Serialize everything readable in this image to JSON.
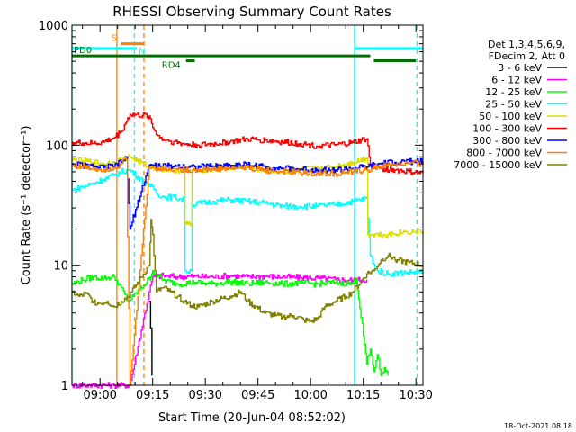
{
  "chart_data": {
    "type": "line",
    "title": "RHESSI Observing Summary Count Rates",
    "xlabel": "Start Time (20-Jun-04 08:52:02)",
    "ylabel": "Count Rate (s⁻¹ detector⁻¹)",
    "x_unit": "minutes after 08:52:02",
    "xlim": [
      0,
      100
    ],
    "ylim": [
      1,
      1000
    ],
    "yscale": "log",
    "x_ticks": [
      {
        "m": 8,
        "label": "09:00"
      },
      {
        "m": 23,
        "label": "09:15"
      },
      {
        "m": 38,
        "label": "09:30"
      },
      {
        "m": 53,
        "label": "09:45"
      },
      {
        "m": 68,
        "label": "10:00"
      },
      {
        "m": 83,
        "label": "10:15"
      },
      {
        "m": 98,
        "label": "10:30"
      }
    ],
    "y_ticks": [
      {
        "v": 1,
        "label": "1"
      },
      {
        "v": 10,
        "label": "10"
      },
      {
        "v": 100,
        "label": "100"
      },
      {
        "v": 1000,
        "label": "1000"
      }
    ],
    "legend_title": [
      "Det 1,3,4,5,6,9,",
      "FDecim 2, Att 0"
    ],
    "series": [
      {
        "name": "3 - 6 keV",
        "color": "#000000",
        "points": [
          [
            22,
            5
          ],
          [
            22.4,
            3
          ],
          [
            22.8,
            1.2
          ]
        ]
      },
      {
        "name": "6 - 12 keV",
        "color": "#ff00ff",
        "points": [
          [
            0,
            1
          ],
          [
            5,
            1
          ],
          [
            12,
            1
          ],
          [
            16.5,
            1
          ],
          [
            22,
            6
          ],
          [
            23,
            8
          ],
          [
            26,
            8.2
          ],
          [
            30,
            8
          ],
          [
            35,
            8.1
          ],
          [
            40,
            8
          ],
          [
            45,
            8.2
          ],
          [
            50,
            8
          ],
          [
            55,
            8.1
          ],
          [
            60,
            8
          ],
          [
            65,
            7.9
          ],
          [
            70,
            7.8
          ],
          [
            75,
            7.6
          ],
          [
            80,
            7.5
          ],
          [
            84,
            7.6
          ]
        ]
      },
      {
        "name": "12 - 25 keV",
        "color": "#00ff00",
        "points": [
          [
            0,
            7
          ],
          [
            3,
            7.5
          ],
          [
            6,
            8
          ],
          [
            9,
            7.8
          ],
          [
            12,
            8
          ],
          [
            14,
            6.5
          ],
          [
            16,
            5
          ],
          [
            17.5,
            5.5
          ],
          [
            22.5,
            8
          ],
          [
            23,
            9
          ],
          [
            26,
            7.5
          ],
          [
            30,
            7
          ],
          [
            35,
            7.2
          ],
          [
            40,
            7
          ],
          [
            45,
            7.3
          ],
          [
            50,
            7
          ],
          [
            55,
            7.2
          ],
          [
            60,
            7
          ],
          [
            65,
            7.1
          ],
          [
            70,
            7
          ],
          [
            75,
            7.2
          ],
          [
            80,
            7
          ],
          [
            81,
            7.8
          ],
          [
            84,
            1.5
          ],
          [
            85,
            2
          ],
          [
            86,
            1.3
          ],
          [
            87,
            1.8
          ],
          [
            88,
            1.2
          ],
          [
            89,
            1.4
          ],
          [
            90,
            1.2
          ]
        ]
      },
      {
        "name": "25 - 50 keV",
        "color": "#00ffff",
        "points": [
          [
            0,
            42
          ],
          [
            3,
            45
          ],
          [
            6,
            48
          ],
          [
            9,
            52
          ],
          [
            12,
            56
          ],
          [
            14,
            60
          ],
          [
            16.5,
            62
          ],
          [
            22,
            45
          ],
          [
            23,
            46
          ],
          [
            24,
            40
          ],
          [
            26,
            37
          ],
          [
            29,
            37
          ],
          [
            32,
            35
          ],
          [
            32.2,
            9
          ],
          [
            34,
            9
          ],
          [
            34.2,
            32
          ],
          [
            40,
            34
          ],
          [
            45,
            35
          ],
          [
            50,
            34
          ],
          [
            55,
            33
          ],
          [
            60,
            31
          ],
          [
            65,
            31
          ],
          [
            70,
            31
          ],
          [
            75,
            32
          ],
          [
            80,
            34
          ],
          [
            84,
            36
          ],
          [
            85,
            12
          ],
          [
            87,
            9
          ],
          [
            90,
            8.5
          ],
          [
            95,
            8.7
          ],
          [
            100,
            8.8
          ]
        ]
      },
      {
        "name": "50 - 100 keV",
        "color": "#dddd00",
        "points": [
          [
            0,
            75
          ],
          [
            3,
            74
          ],
          [
            6,
            72
          ],
          [
            9,
            70
          ],
          [
            12,
            72
          ],
          [
            14,
            76
          ],
          [
            16.5,
            80
          ],
          [
            22,
            66
          ],
          [
            25,
            64
          ],
          [
            28,
            62
          ],
          [
            32,
            62
          ],
          [
            32.2,
            22
          ],
          [
            34,
            22
          ],
          [
            34.2,
            62
          ],
          [
            40,
            63
          ],
          [
            45,
            65
          ],
          [
            50,
            66
          ],
          [
            55,
            62
          ],
          [
            60,
            60
          ],
          [
            65,
            62
          ],
          [
            70,
            64
          ],
          [
            75,
            66
          ],
          [
            80,
            72
          ],
          [
            84,
            78
          ],
          [
            84.3,
            18
          ],
          [
            90,
            18
          ],
          [
            95,
            19
          ],
          [
            100,
            19
          ]
        ]
      },
      {
        "name": "100 - 300 keV",
        "color": "#ff0000",
        "points": [
          [
            0,
            105
          ],
          [
            3,
            104
          ],
          [
            6,
            103
          ],
          [
            9,
            106
          ],
          [
            12,
            115
          ],
          [
            14,
            130
          ],
          [
            16.5,
            180
          ],
          [
            22,
            175
          ],
          [
            23,
            140
          ],
          [
            25,
            115
          ],
          [
            28,
            108
          ],
          [
            32,
            102
          ],
          [
            36,
            100
          ],
          [
            40,
            102
          ],
          [
            45,
            107
          ],
          [
            50,
            112
          ],
          [
            55,
            110
          ],
          [
            60,
            106
          ],
          [
            65,
            103
          ],
          [
            70,
            98
          ],
          [
            75,
            100
          ],
          [
            80,
            105
          ],
          [
            84,
            113
          ],
          [
            85,
            68
          ],
          [
            88,
            64
          ],
          [
            92,
            62
          ],
          [
            96,
            60
          ],
          [
            100,
            58
          ]
        ]
      },
      {
        "name": "300 - 800 keV",
        "color": "#0000ff",
        "points": [
          [
            0,
            70
          ],
          [
            3,
            68
          ],
          [
            6,
            66
          ],
          [
            9,
            65
          ],
          [
            12,
            67
          ],
          [
            14,
            72
          ],
          [
            15.5,
            80
          ],
          [
            16.5,
            20
          ],
          [
            22,
            68
          ],
          [
            25,
            67
          ],
          [
            30,
            67
          ],
          [
            35,
            66
          ],
          [
            40,
            67
          ],
          [
            45,
            68
          ],
          [
            50,
            69
          ],
          [
            55,
            66
          ],
          [
            60,
            64
          ],
          [
            65,
            63
          ],
          [
            70,
            62
          ],
          [
            75,
            62
          ],
          [
            80,
            64
          ],
          [
            84,
            66
          ],
          [
            88,
            70
          ],
          [
            92,
            72
          ],
          [
            96,
            73
          ],
          [
            100,
            73
          ]
        ]
      },
      {
        "name": "800 - 7000 keV",
        "color": "#ff8000",
        "points": [
          [
            0,
            68
          ],
          [
            3,
            66
          ],
          [
            6,
            64
          ],
          [
            9,
            63
          ],
          [
            12,
            65
          ],
          [
            14,
            70
          ],
          [
            15.5,
            76
          ],
          [
            16.5,
            1
          ],
          [
            22,
            66
          ],
          [
            25,
            64
          ],
          [
            30,
            63
          ],
          [
            35,
            62
          ],
          [
            40,
            63
          ],
          [
            45,
            64
          ],
          [
            50,
            65
          ],
          [
            55,
            62
          ],
          [
            60,
            60
          ],
          [
            65,
            59
          ],
          [
            70,
            58
          ],
          [
            75,
            58
          ],
          [
            80,
            60
          ],
          [
            84,
            62
          ],
          [
            88,
            67
          ],
          [
            92,
            69
          ],
          [
            96,
            70
          ],
          [
            100,
            70
          ]
        ]
      },
      {
        "name": "7000 - 15000 keV",
        "color": "#808000",
        "points": [
          [
            0,
            6
          ],
          [
            2,
            5.5
          ],
          [
            4,
            5.8
          ],
          [
            6,
            5
          ],
          [
            8,
            4.8
          ],
          [
            10,
            5
          ],
          [
            12,
            4.5
          ],
          [
            14,
            5
          ],
          [
            16,
            5.5
          ],
          [
            17,
            6
          ],
          [
            22,
            10
          ],
          [
            22.5,
            24
          ],
          [
            23,
            18
          ],
          [
            24,
            6
          ],
          [
            26,
            6.5
          ],
          [
            28,
            6
          ],
          [
            30,
            5.5
          ],
          [
            32,
            5
          ],
          [
            34,
            4.6
          ],
          [
            36,
            4.5
          ],
          [
            40,
            5
          ],
          [
            45,
            5.5
          ],
          [
            48,
            6
          ],
          [
            50,
            5
          ],
          [
            55,
            4
          ],
          [
            58,
            3.8
          ],
          [
            60,
            3.7
          ],
          [
            63,
            3.8
          ],
          [
            66,
            3.5
          ],
          [
            68,
            3.4
          ],
          [
            70,
            3.6
          ],
          [
            72,
            4.5
          ],
          [
            75,
            5
          ],
          [
            78,
            5.5
          ],
          [
            80,
            6
          ],
          [
            84,
            8.5
          ],
          [
            86,
            9
          ],
          [
            88,
            11
          ],
          [
            90,
            12
          ],
          [
            93,
            11
          ],
          [
            96,
            10.5
          ],
          [
            100,
            10
          ]
        ]
      }
    ],
    "flag_bars": [
      {
        "label": "S",
        "color": "#ff8000",
        "start": 14,
        "end": 20.5,
        "v": 700
      },
      {
        "label": "N",
        "color": "#00ffff",
        "start": 0,
        "end": 18.5,
        "v": 640
      },
      {
        "label": "",
        "color": "#00ffff",
        "start": 80.5,
        "end": 100,
        "v": 640
      },
      {
        "label": "PD0",
        "color": "#007000",
        "start": 0,
        "end": 85,
        "v": 555
      },
      {
        "label": "",
        "color": "#007000",
        "start": 86,
        "end": 98,
        "v": 505
      },
      {
        "label": "RD4",
        "color": "#007000",
        "start": 32.5,
        "end": 35,
        "v": 505
      }
    ],
    "vlines": [
      {
        "m": 0,
        "color": "#00ffff",
        "dash": false
      },
      {
        "m": 12.8,
        "color": "#ff8000",
        "dash": false
      },
      {
        "m": 17.8,
        "color": "#00ffff",
        "dash": true
      },
      {
        "m": 20.5,
        "color": "#ff8000",
        "dash": true
      },
      {
        "m": 80.5,
        "color": "#00ffff",
        "dash": false
      },
      {
        "m": 98.3,
        "color": "#00ffff",
        "dash": true
      }
    ]
  },
  "footer": {
    "timestamp": "18-Oct-2021 08:18"
  }
}
